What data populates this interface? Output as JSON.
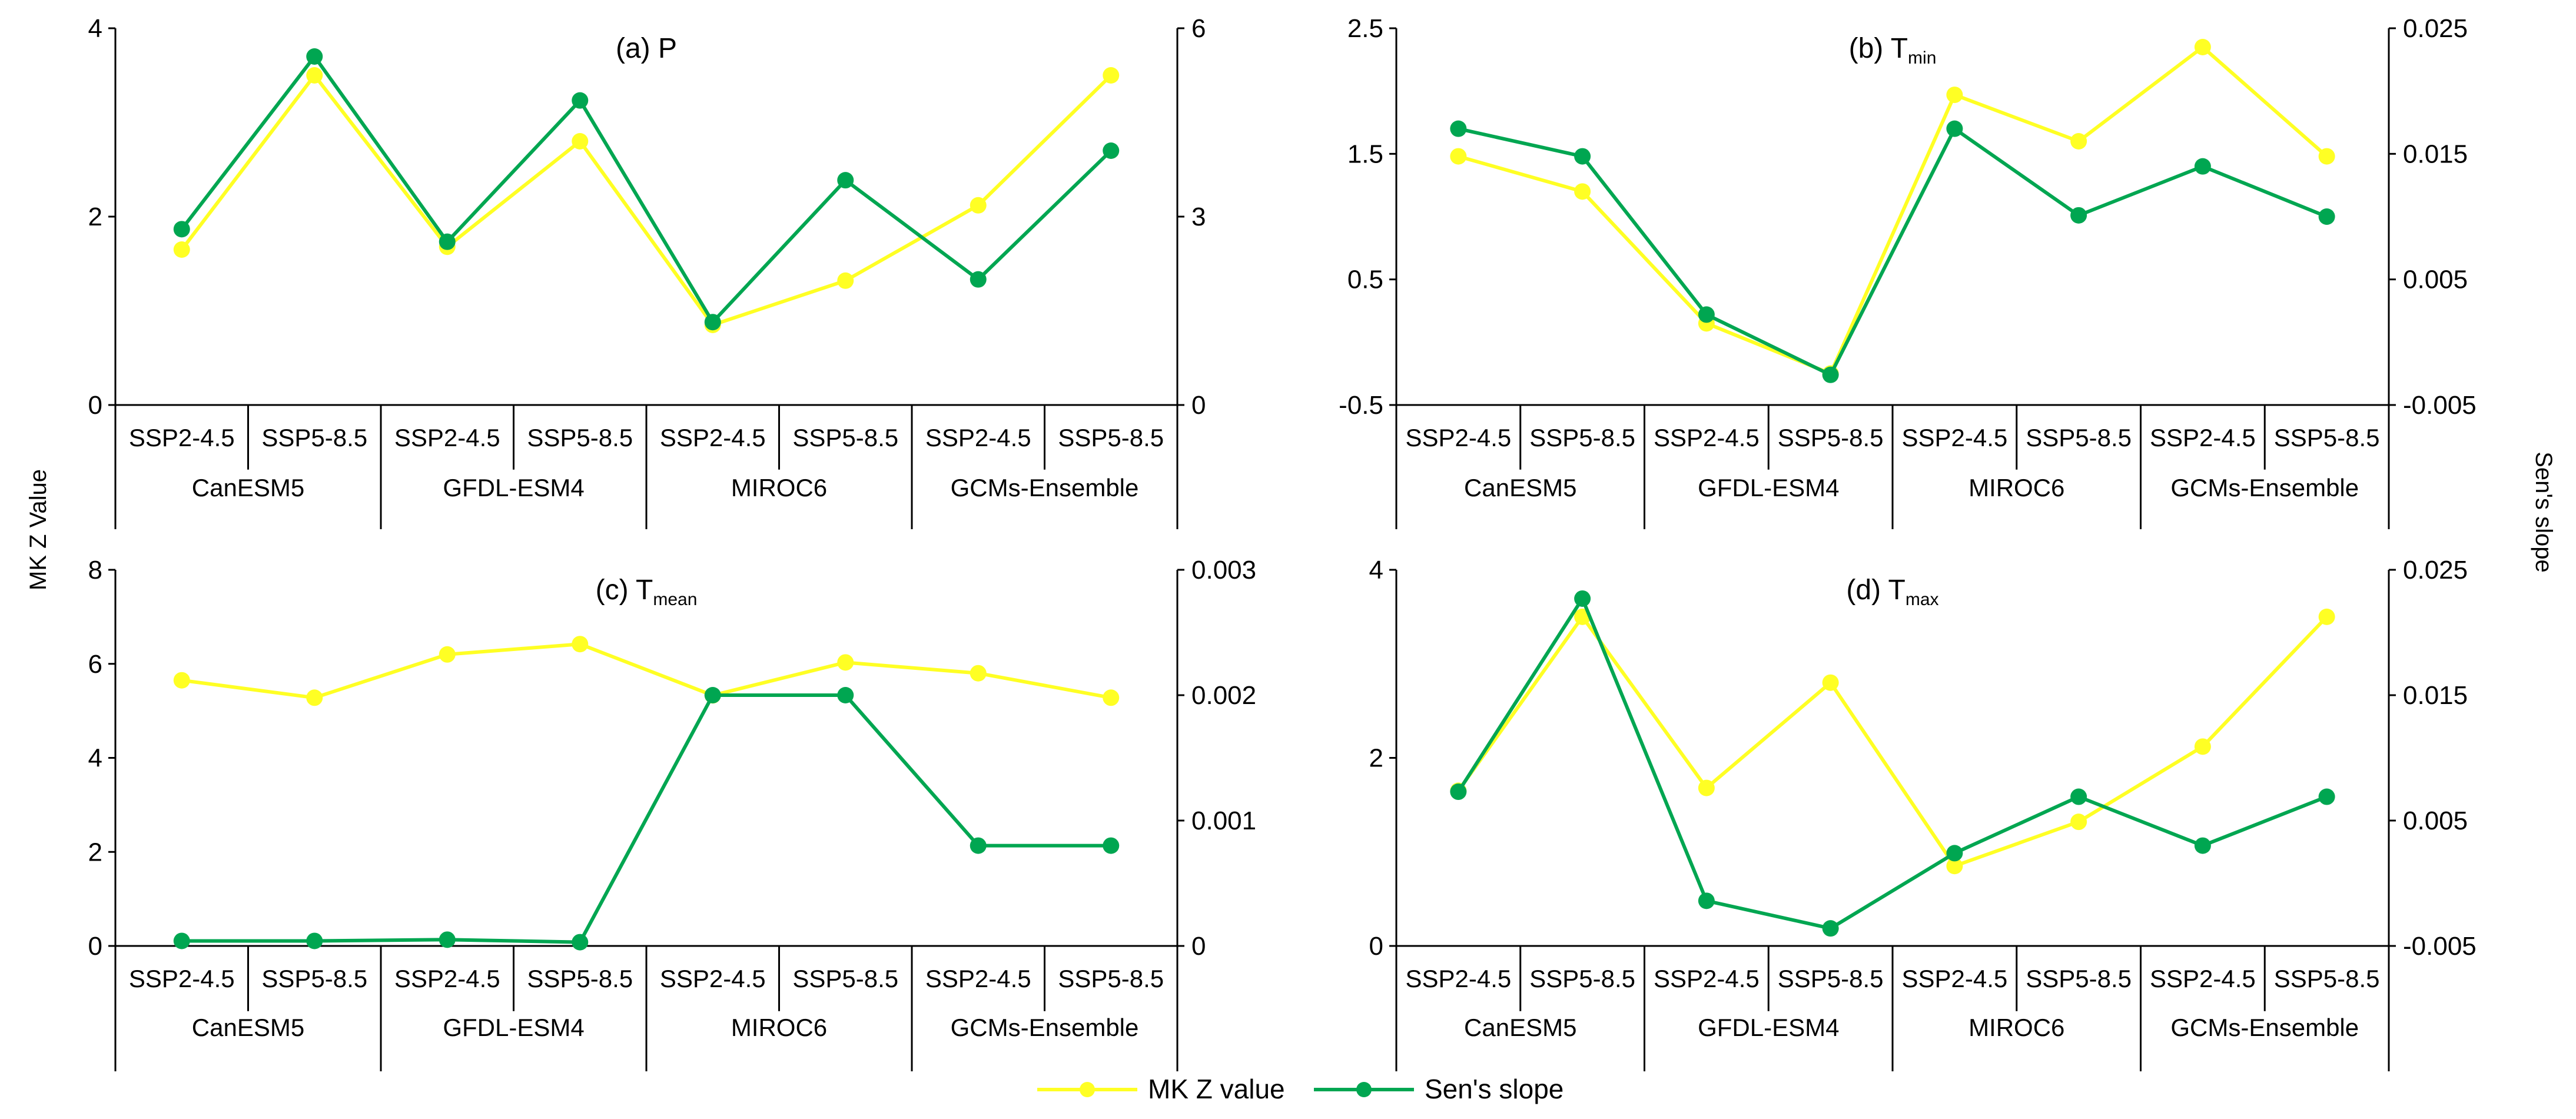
{
  "figure": {
    "left_axis_label": "MK Z Value",
    "right_axis_label": "Sen's slope"
  },
  "legend": [
    {
      "label": "MK Z value",
      "color": "#ffff24"
    },
    {
      "label": "Sen's slope",
      "color": "#00a651"
    }
  ],
  "group_labels": [
    "CanESM5",
    "GFDL-ESM4",
    "MIROC6",
    "GCMs-Ensemble"
  ],
  "scenario_labels": [
    "SSP2-4.5",
    "SSP5-8.5",
    "SSP2-4.5",
    "SSP5-8.5",
    "SSP2-4.5",
    "SSP5-8.5",
    "SSP2-4.5",
    "SSP5-8.5"
  ],
  "chart_data": [
    {
      "type": "line",
      "title_main": "(a) P",
      "title_sub": "",
      "categories": [
        "CanESM5 SSP2-4.5",
        "CanESM5 SSP5-8.5",
        "GFDL-ESM4 SSP2-4.5",
        "GFDL-ESM4 SSP5-8.5",
        "MIROC6 SSP2-4.5",
        "MIROC6 SSP5-8.5",
        "GCMs-Ensemble SSP2-4.5",
        "GCMs-Ensemble SSP5-8.5"
      ],
      "left_ylim": [
        0,
        4
      ],
      "left_ticks": [
        "0",
        "2",
        "4"
      ],
      "right_ylim": [
        0,
        6
      ],
      "right_ticks": [
        "0",
        "3",
        "6"
      ],
      "series": [
        {
          "name": "MK Z value",
          "axis": "left",
          "color": "#ffff24",
          "values": [
            1.65,
            3.5,
            1.68,
            2.8,
            0.85,
            1.32,
            2.12,
            3.5
          ]
        },
        {
          "name": "Sen's slope",
          "axis": "right",
          "color": "#00a651",
          "values": [
            2.8,
            5.55,
            2.6,
            4.85,
            1.32,
            3.58,
            2.0,
            4.05
          ]
        }
      ]
    },
    {
      "type": "line",
      "title_main": "(b) T",
      "title_sub": "min",
      "categories": [
        "CanESM5 SSP2-4.5",
        "CanESM5 SSP5-8.5",
        "GFDL-ESM4 SSP2-4.5",
        "GFDL-ESM4 SSP5-8.5",
        "MIROC6 SSP2-4.5",
        "MIROC6 SSP5-8.5",
        "GCMs-Ensemble SSP2-4.5",
        "GCMs-Ensemble SSP5-8.5"
      ],
      "left_ylim": [
        -0.5,
        2.5
      ],
      "left_ticks": [
        "-0.5",
        "0.5",
        "1.5",
        "2.5"
      ],
      "right_ylim": [
        -0.005,
        0.025
      ],
      "right_ticks": [
        "-0.005",
        "0.005",
        "0.015",
        "0.025"
      ],
      "series": [
        {
          "name": "MK Z value",
          "axis": "left",
          "color": "#ffff24",
          "values": [
            1.48,
            1.2,
            0.15,
            -0.25,
            1.97,
            1.6,
            2.35,
            1.48
          ]
        },
        {
          "name": "Sen's slope",
          "axis": "right",
          "color": "#00a651",
          "values": [
            0.017,
            0.0148,
            0.0022,
            -0.0026,
            0.017,
            0.0101,
            0.014,
            0.01
          ]
        }
      ]
    },
    {
      "type": "line",
      "title_main": "(c) T",
      "title_sub": "mean",
      "categories": [
        "CanESM5 SSP2-4.5",
        "CanESM5 SSP5-8.5",
        "GFDL-ESM4 SSP2-4.5",
        "GFDL-ESM4 SSP5-8.5",
        "MIROC6 SSP2-4.5",
        "MIROC6 SSP5-8.5",
        "GCMs-Ensemble SSP2-4.5",
        "GCMs-Ensemble SSP5-8.5"
      ],
      "left_ylim": [
        0,
        8
      ],
      "left_ticks": [
        "0",
        "2",
        "4",
        "6",
        "8"
      ],
      "right_ylim": [
        0,
        0.003
      ],
      "right_ticks": [
        "0",
        "0.001",
        "0.002",
        "0.003"
      ],
      "series": [
        {
          "name": "MK Z value",
          "axis": "left",
          "color": "#ffff24",
          "values": [
            5.65,
            5.28,
            6.2,
            6.42,
            5.33,
            6.03,
            5.8,
            5.28
          ]
        },
        {
          "name": "Sen's slope",
          "axis": "right",
          "color": "#00a651",
          "values": [
            4e-05,
            4e-05,
            5e-05,
            3e-05,
            0.002,
            0.002,
            0.0008,
            0.0008
          ]
        }
      ]
    },
    {
      "type": "line",
      "title_main": "(d) T",
      "title_sub": "max",
      "categories": [
        "CanESM5 SSP2-4.5",
        "CanESM5 SSP5-8.5",
        "GFDL-ESM4 SSP2-4.5",
        "GFDL-ESM4 SSP5-8.5",
        "MIROC6 SSP2-4.5",
        "MIROC6 SSP5-8.5",
        "GCMs-Ensemble SSP2-4.5",
        "GCMs-Ensemble SSP5-8.5"
      ],
      "left_ylim": [
        0,
        4
      ],
      "left_ticks": [
        "0",
        "2",
        "4"
      ],
      "right_ylim": [
        -0.005,
        0.025
      ],
      "right_ticks": [
        "-0.005",
        "0.005",
        "0.015",
        "0.025"
      ],
      "series": [
        {
          "name": "MK Z value",
          "axis": "left",
          "color": "#ffff24",
          "values": [
            1.65,
            3.5,
            1.68,
            2.8,
            0.85,
            1.32,
            2.12,
            3.5
          ]
        },
        {
          "name": "Sen's slope",
          "axis": "right",
          "color": "#00a651",
          "values": [
            0.0073,
            0.0227,
            -0.0014,
            -0.0036,
            0.0024,
            0.0069,
            0.003,
            0.0069
          ]
        }
      ]
    }
  ]
}
